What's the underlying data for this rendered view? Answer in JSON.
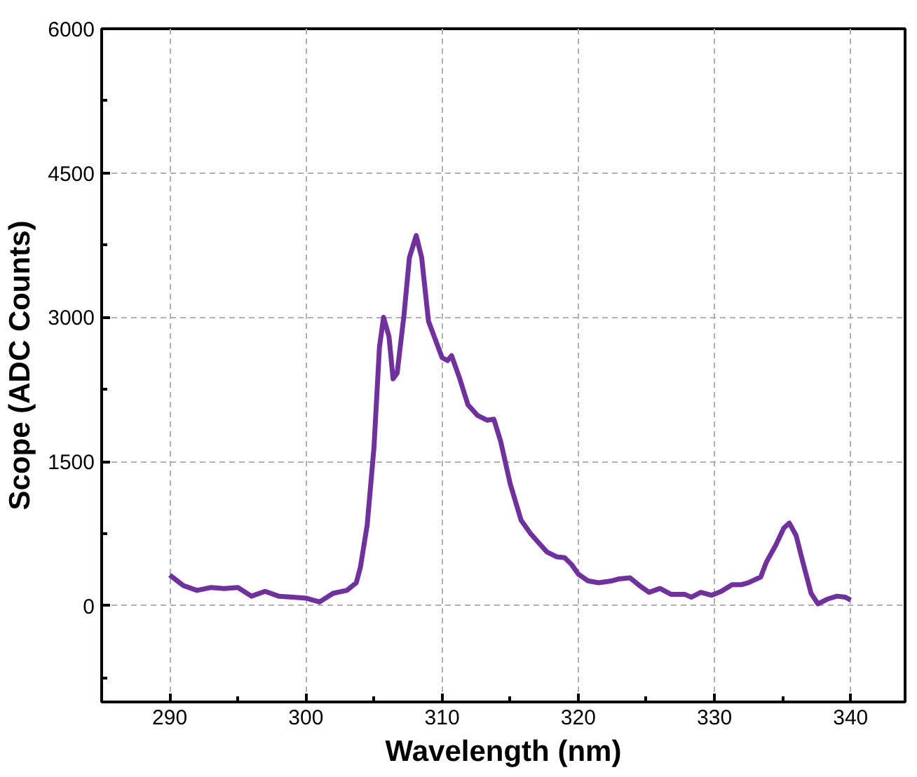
{
  "chart_data": {
    "type": "line",
    "xlabel": "Wavelength (nm)",
    "ylabel": "Scope (ADC Counts)",
    "xlim": [
      285,
      344
    ],
    "ylim": [
      -1000,
      6000
    ],
    "xticks": [
      290,
      300,
      310,
      320,
      330,
      340
    ],
    "yticks": [
      0,
      1500,
      3000,
      4500,
      6000
    ],
    "grid": true,
    "marker": "none",
    "line_style": "solid",
    "series": [
      {
        "color": "#7030a0",
        "x": [
          290,
          291,
          292,
          293,
          294,
          295,
          296,
          297,
          298,
          299,
          300,
          301,
          302,
          303,
          303.7,
          304,
          304.5,
          305,
          305.4,
          305.7,
          306.1,
          306.4,
          306.7,
          307.2,
          307.6,
          308.1,
          308.5,
          309,
          309.5,
          310,
          310.4,
          310.7,
          311.3,
          311.9,
          312.6,
          313.3,
          313.8,
          314.3,
          315,
          315.8,
          316.5,
          317,
          317.7,
          318.4,
          319,
          319.5,
          320,
          320.7,
          321.5,
          322.5,
          323,
          323.8,
          324.5,
          325.2,
          326,
          326.8,
          327.8,
          328.3,
          329,
          329.8,
          330.5,
          331.3,
          332,
          332.5,
          333.4,
          333.8,
          334.5,
          335.1,
          335.5,
          336,
          336.5,
          337.1,
          337.6,
          338.3,
          339,
          339.6,
          340
        ],
        "values": [
          320,
          210,
          160,
          190,
          180,
          190,
          100,
          150,
          100,
          90,
          80,
          40,
          130,
          160,
          240,
          400,
          840,
          1650,
          2690,
          3000,
          2800,
          2360,
          2420,
          3020,
          3620,
          3850,
          3620,
          2960,
          2770,
          2580,
          2550,
          2600,
          2360,
          2090,
          1980,
          1930,
          1940,
          1710,
          1270,
          890,
          750,
          670,
          560,
          510,
          500,
          430,
          330,
          260,
          240,
          260,
          280,
          290,
          210,
          140,
          180,
          120,
          120,
          90,
          140,
          110,
          150,
          220,
          220,
          240,
          300,
          450,
          630,
          810,
          860,
          730,
          450,
          130,
          20,
          70,
          100,
          90,
          60
        ]
      }
    ]
  }
}
